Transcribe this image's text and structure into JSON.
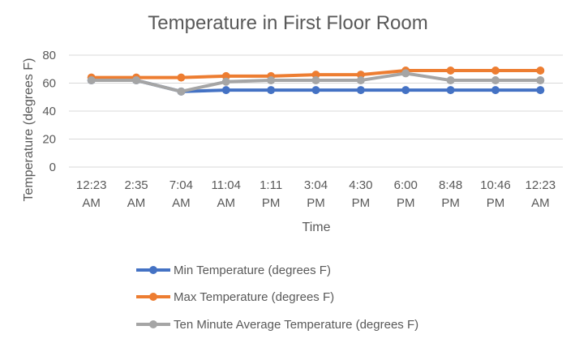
{
  "chart_data": {
    "type": "line",
    "title": "Temperature in First Floor Room",
    "xlabel": "Time",
    "ylabel": "Temperature (degrees F)",
    "ylim": [
      0,
      80
    ],
    "yticks": [
      0,
      20,
      40,
      60,
      80
    ],
    "grid": true,
    "legend_position": "bottom",
    "categories": [
      [
        "12:23",
        "AM"
      ],
      [
        "2:35",
        "AM"
      ],
      [
        "7:04",
        "AM"
      ],
      [
        "11:04",
        "AM"
      ],
      [
        "1:11",
        "PM"
      ],
      [
        "3:04",
        "PM"
      ],
      [
        "4:30",
        "PM"
      ],
      [
        "6:00",
        "PM"
      ],
      [
        "8:48",
        "PM"
      ],
      [
        "10:46",
        "PM"
      ],
      [
        "12:23",
        "AM"
      ]
    ],
    "series": [
      {
        "name": "Min Temperature (degrees F)",
        "color": "#4472c4",
        "values": [
          62,
          62,
          54,
          55,
          55,
          55,
          55,
          55,
          55,
          55,
          55
        ]
      },
      {
        "name": "Max Temperature (degrees F)",
        "color": "#ed7d31",
        "values": [
          64,
          64,
          64,
          65,
          65,
          66,
          66,
          69,
          69,
          69,
          69
        ]
      },
      {
        "name": "Ten Minute Average Temperature (degrees F)",
        "color": "#a5a5a5",
        "values": [
          62,
          62,
          54,
          61,
          62,
          62,
          62,
          67,
          62,
          62,
          62
        ]
      }
    ]
  }
}
